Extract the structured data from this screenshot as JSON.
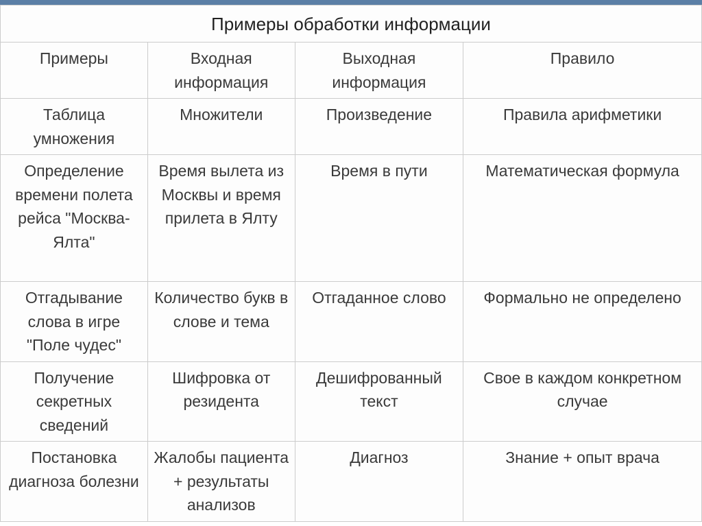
{
  "table": {
    "title": "Примеры обработки информации",
    "columns": [
      "Примеры",
      "Входная информация",
      "Выходная информация",
      "Правило"
    ],
    "rows": [
      [
        "Таблица умножения",
        "Множители",
        "Произведение",
        "Правила арифметики"
      ],
      [
        "Определение времени полета рейса \"Москва-Ялта\"",
        "Время вылета из Москвы и время прилета в Ялту",
        "Время в пути",
        "Математическая формула"
      ],
      [
        "Отгадывание слова в игре \"Поле чудес\"",
        "Количество букв в слове и тема",
        "Отгаданное слово",
        "Формально не определено"
      ],
      [
        "Получение секретных сведений",
        "Шифровка от резидента",
        "Дешифрованный текст",
        "Свое в каждом конкретном случае"
      ],
      [
        "Постановка диагноза болезни",
        "Жалобы пациента + результаты анализов",
        "Диагноз",
        "Знание + опыт врача"
      ]
    ],
    "colors": {
      "topbar": "#5b7fa6",
      "border": "#cccccc",
      "text": "#3a3a3a",
      "background": "#fdfdfd"
    },
    "font_size_title": 26,
    "font_size_body": 23
  }
}
